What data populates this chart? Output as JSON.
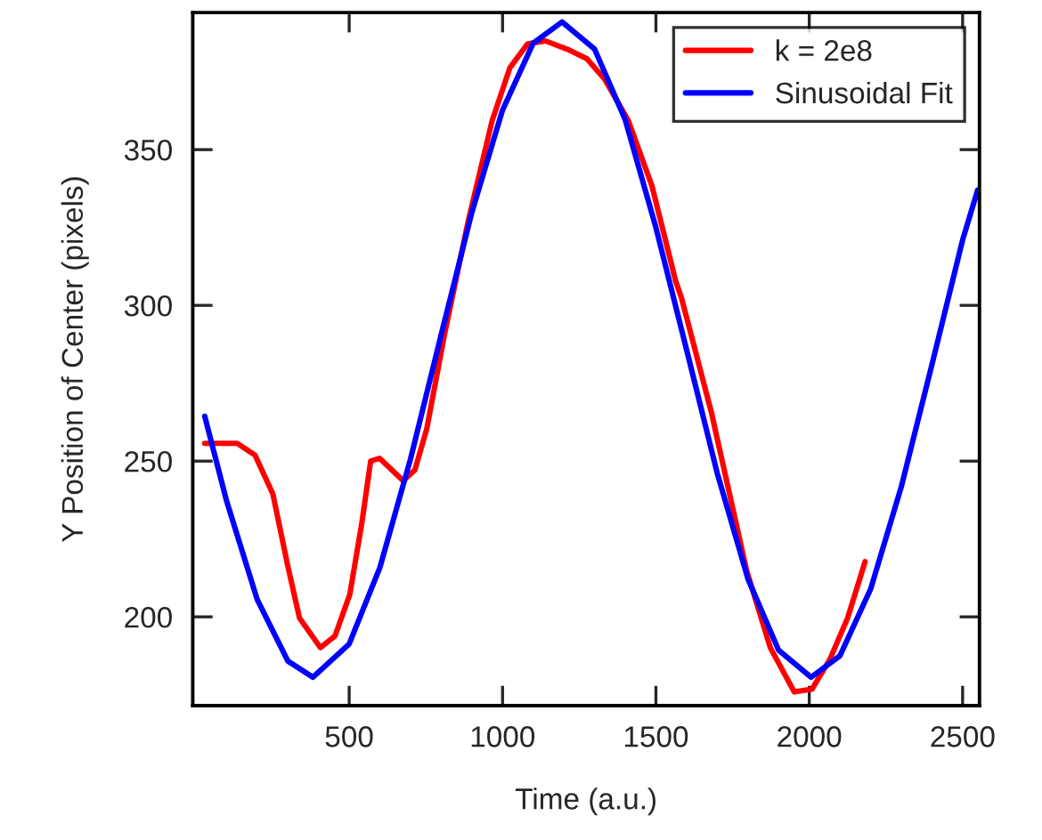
{
  "chart_data": {
    "type": "line",
    "xlabel": "Time (a.u.)",
    "ylabel": "Y Position of Center (pixels)",
    "xlim": [
      -10,
      2555
    ],
    "ylim": [
      171.5,
      394
    ],
    "xticks": [
      500,
      1000,
      1500,
      2000,
      2500
    ],
    "yticks": [
      200,
      250,
      300,
      350
    ],
    "grid": false,
    "legend": "top right",
    "marker": "none",
    "line_style": "solid",
    "series": [
      {
        "name": "k = 2e8",
        "color": "#ff0000",
        "x": [
          29,
          135,
          193,
          251,
          299,
          338,
          406,
          454,
          502,
          541,
          570,
          599,
          676,
          714,
          753,
          811,
          888,
          966,
          1024,
          1082,
          1140,
          1217,
          1275,
          1333,
          1410,
          1487,
          1564,
          1584,
          1680,
          1796,
          1873,
          1951,
          2009,
          2067,
          2125,
          2182
        ],
        "values": [
          255.7,
          255.7,
          251.9,
          239.5,
          216.7,
          199.6,
          190.1,
          193.9,
          207.2,
          230,
          250,
          250.9,
          243.7,
          247.1,
          260.4,
          290.8,
          327,
          359.3,
          376.3,
          384,
          384.9,
          382,
          379.2,
          372.6,
          359.3,
          338.4,
          308,
          302.2,
          266,
          214.8,
          190.1,
          175.9,
          176.8,
          186.3,
          199.6,
          217.7
        ]
      },
      {
        "name": "Sinusoidal Fit",
        "color": "#0000ff",
        "x": [
          29,
          100,
          200,
          300,
          382,
          500,
          600,
          700,
          800,
          900,
          1000,
          1100,
          1194,
          1300,
          1400,
          1500,
          1600,
          1700,
          1800,
          1900,
          2006,
          2100,
          2200,
          2300,
          2400,
          2500,
          2549
        ],
        "values": [
          264.4,
          237.3,
          205.6,
          185.8,
          180.6,
          191.3,
          215.8,
          250.7,
          290.6,
          329.9,
          362.7,
          384.2,
          391,
          382.3,
          359.6,
          325,
          285.8,
          246.1,
          212.2,
          189.3,
          180.6,
          187.5,
          208.9,
          241.7,
          281,
          321,
          337
        ]
      }
    ]
  }
}
